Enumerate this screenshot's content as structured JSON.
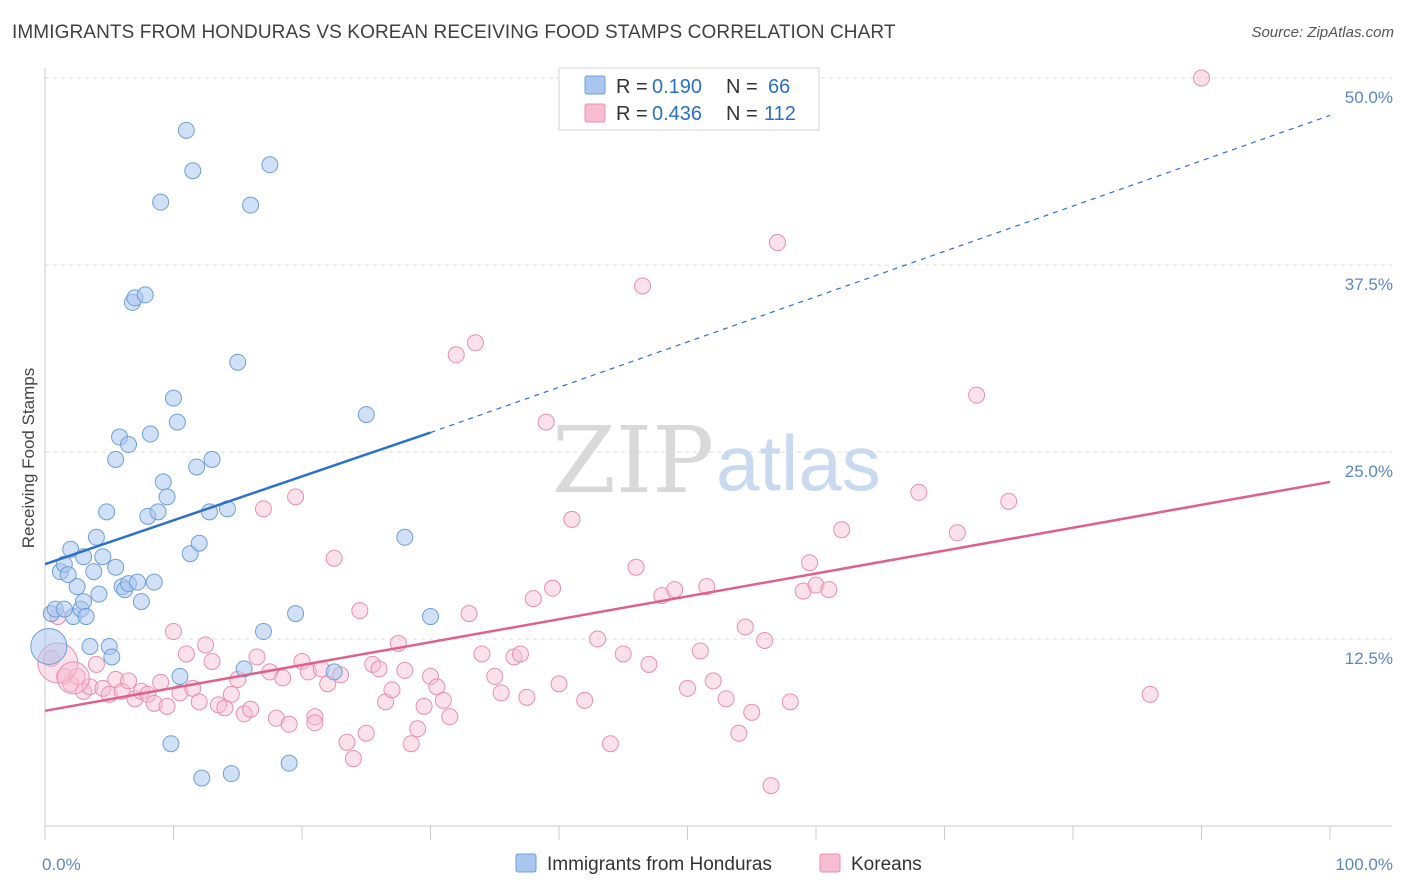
{
  "title": "IMMIGRANTS FROM HONDURAS VS KOREAN RECEIVING FOOD STAMPS CORRELATION CHART",
  "source": "Source: ZipAtlas.com",
  "watermark": {
    "zip": "ZIP",
    "atlas": "atlas"
  },
  "colors": {
    "blue_fill": "#a9c7ee",
    "blue_stroke": "#6f9fd8",
    "blue_line": "#2d6fcc",
    "pink_fill": "#f6bcd0",
    "pink_stroke": "#e88fad",
    "pink_line": "#e0608c",
    "tick": "#5b86c5",
    "grid": "#dddddd"
  },
  "legend": {
    "rows": [
      {
        "r_label": "R =",
        "r_value": "0.190",
        "n_label": "N =",
        "n_value": "66"
      },
      {
        "r_label": "R =",
        "r_value": "0.436",
        "n_label": "N =",
        "n_value": "112"
      }
    ]
  },
  "chart_data": {
    "type": "scatter",
    "title": "IMMIGRANTS FROM HONDURAS VS KOREAN RECEIVING FOOD STAMPS CORRELATION CHART",
    "xlabel": "",
    "ylabel": "Receiving Food Stamps",
    "xlim": [
      0,
      100
    ],
    "ylim": [
      0,
      50
    ],
    "x_tick_labels": [
      "0.0%",
      "100.0%"
    ],
    "y_ticks": [
      12.5,
      25.0,
      37.5,
      50.0
    ],
    "y_tick_labels": [
      "12.5%",
      "25.0%",
      "37.5%",
      "50.0%"
    ],
    "grid": true,
    "legend_placement": "bottom",
    "series": [
      {
        "name": "Immigrants from Honduras",
        "color": "#a9c7ee",
        "trend": {
          "x0": 0,
          "y0": 17.5,
          "x1": 30,
          "y1": 26.3,
          "extend_to_x": 100,
          "extend_to_y": 47.5
        },
        "points": [
          [
            0.5,
            14.2
          ],
          [
            0.8,
            14.5
          ],
          [
            1.2,
            17.0
          ],
          [
            1.5,
            17.5
          ],
          [
            1.8,
            16.8
          ],
          [
            2.0,
            18.5
          ],
          [
            2.2,
            14.0
          ],
          [
            2.5,
            16.0
          ],
          [
            2.8,
            14.5
          ],
          [
            3.0,
            15.0
          ],
          [
            3.2,
            14.0
          ],
          [
            3.5,
            12.0
          ],
          [
            3.8,
            17.0
          ],
          [
            4.0,
            19.3
          ],
          [
            4.2,
            15.5
          ],
          [
            4.5,
            18.0
          ],
          [
            4.8,
            21.0
          ],
          [
            5.0,
            12.0
          ],
          [
            5.2,
            11.3
          ],
          [
            5.5,
            24.5
          ],
          [
            5.5,
            17.3
          ],
          [
            5.8,
            26.0
          ],
          [
            6.0,
            16.0
          ],
          [
            6.2,
            15.8
          ],
          [
            6.5,
            25.5
          ],
          [
            6.5,
            16.2
          ],
          [
            6.8,
            35.0
          ],
          [
            7.0,
            35.3
          ],
          [
            7.2,
            16.3
          ],
          [
            7.5,
            15.0
          ],
          [
            7.8,
            35.5
          ],
          [
            8.0,
            20.7
          ],
          [
            8.2,
            26.2
          ],
          [
            8.5,
            16.3
          ],
          [
            8.8,
            21.0
          ],
          [
            9.0,
            41.7
          ],
          [
            9.2,
            23.0
          ],
          [
            9.5,
            22.0
          ],
          [
            9.8,
            5.5
          ],
          [
            10.0,
            28.6
          ],
          [
            10.3,
            27.0
          ],
          [
            10.5,
            10.0
          ],
          [
            11.0,
            46.5
          ],
          [
            11.3,
            18.2
          ],
          [
            11.5,
            43.8
          ],
          [
            11.8,
            24.0
          ],
          [
            12.0,
            18.9
          ],
          [
            12.2,
            3.2
          ],
          [
            12.8,
            21.0
          ],
          [
            13.0,
            24.5
          ],
          [
            14.2,
            21.2
          ],
          [
            14.5,
            3.5
          ],
          [
            15.0,
            31.0
          ],
          [
            15.5,
            10.5
          ],
          [
            16.0,
            41.5
          ],
          [
            17.0,
            13.0
          ],
          [
            17.5,
            44.2
          ],
          [
            19.0,
            4.2
          ],
          [
            19.5,
            14.2
          ],
          [
            22.5,
            10.3
          ],
          [
            25.0,
            27.5
          ],
          [
            28.0,
            19.3
          ],
          [
            30.0,
            14.0
          ],
          [
            1.5,
            14.5
          ],
          [
            3.0,
            18.0
          ],
          [
            0.3,
            12.0
          ]
        ]
      },
      {
        "name": "Koreans",
        "color": "#f6bcd0",
        "trend": {
          "x0": 0,
          "y0": 7.7,
          "x1": 100,
          "y1": 23.0
        },
        "points": [
          [
            0.5,
            11.2
          ],
          [
            1.0,
            14.0
          ],
          [
            1.5,
            10.0
          ],
          [
            2.0,
            9.5
          ],
          [
            2.5,
            10.0
          ],
          [
            3.0,
            9.0
          ],
          [
            3.5,
            9.3
          ],
          [
            4.0,
            10.8
          ],
          [
            4.5,
            9.2
          ],
          [
            5.0,
            8.8
          ],
          [
            5.5,
            9.8
          ],
          [
            6.0,
            9.0
          ],
          [
            6.5,
            9.7
          ],
          [
            7.0,
            8.5
          ],
          [
            7.5,
            9.0
          ],
          [
            8.0,
            8.8
          ],
          [
            8.5,
            8.2
          ],
          [
            9.0,
            9.6
          ],
          [
            9.5,
            8.0
          ],
          [
            10.0,
            13.0
          ],
          [
            10.5,
            8.9
          ],
          [
            11.0,
            11.5
          ],
          [
            11.5,
            9.2
          ],
          [
            12.0,
            8.3
          ],
          [
            12.5,
            12.1
          ],
          [
            13.0,
            11.0
          ],
          [
            13.5,
            8.1
          ],
          [
            14.0,
            7.9
          ],
          [
            14.5,
            8.8
          ],
          [
            15.0,
            9.8
          ],
          [
            15.5,
            7.5
          ],
          [
            16.0,
            7.8
          ],
          [
            16.5,
            11.3
          ],
          [
            17.0,
            21.2
          ],
          [
            17.5,
            10.3
          ],
          [
            18.0,
            7.2
          ],
          [
            18.5,
            9.9
          ],
          [
            19.0,
            6.8
          ],
          [
            19.5,
            22.0
          ],
          [
            20.0,
            11.0
          ],
          [
            20.5,
            10.3
          ],
          [
            21.0,
            7.3
          ],
          [
            21.5,
            10.5
          ],
          [
            22.0,
            9.5
          ],
          [
            22.5,
            17.9
          ],
          [
            23.0,
            10.1
          ],
          [
            23.5,
            5.6
          ],
          [
            24.0,
            4.5
          ],
          [
            24.5,
            14.4
          ],
          [
            25.0,
            6.2
          ],
          [
            25.5,
            10.8
          ],
          [
            26.0,
            10.5
          ],
          [
            26.5,
            8.3
          ],
          [
            27.0,
            9.1
          ],
          [
            27.5,
            12.2
          ],
          [
            28.0,
            10.4
          ],
          [
            28.5,
            5.5
          ],
          [
            29.0,
            6.5
          ],
          [
            29.5,
            8.0
          ],
          [
            30.0,
            10.0
          ],
          [
            30.5,
            9.3
          ],
          [
            31.0,
            8.4
          ],
          [
            31.5,
            7.3
          ],
          [
            32.0,
            31.5
          ],
          [
            33.0,
            14.2
          ],
          [
            33.5,
            32.3
          ],
          [
            34.0,
            11.5
          ],
          [
            35.0,
            10.0
          ],
          [
            35.5,
            8.9
          ],
          [
            36.5,
            11.3
          ],
          [
            37.0,
            11.5
          ],
          [
            37.5,
            8.6
          ],
          [
            38.0,
            15.2
          ],
          [
            39.0,
            27.0
          ],
          [
            39.5,
            15.9
          ],
          [
            40.0,
            9.5
          ],
          [
            41.0,
            20.5
          ],
          [
            42.0,
            8.4
          ],
          [
            43.0,
            12.5
          ],
          [
            44.0,
            5.5
          ],
          [
            45.0,
            11.5
          ],
          [
            46.0,
            17.3
          ],
          [
            46.5,
            36.1
          ],
          [
            47.0,
            10.8
          ],
          [
            48.0,
            15.4
          ],
          [
            49.0,
            15.8
          ],
          [
            50.0,
            9.2
          ],
          [
            51.0,
            11.7
          ],
          [
            51.5,
            16.0
          ],
          [
            52.0,
            9.7
          ],
          [
            53.0,
            8.5
          ],
          [
            54.0,
            6.2
          ],
          [
            54.5,
            13.3
          ],
          [
            55.0,
            7.6
          ],
          [
            56.0,
            12.4
          ],
          [
            56.5,
            2.7
          ],
          [
            57.0,
            39.0
          ],
          [
            58.0,
            8.3
          ],
          [
            59.0,
            15.7
          ],
          [
            59.5,
            17.6
          ],
          [
            60.0,
            16.1
          ],
          [
            61.0,
            15.8
          ],
          [
            62.0,
            19.8
          ],
          [
            68.0,
            22.3
          ],
          [
            71.0,
            19.6
          ],
          [
            72.5,
            28.8
          ],
          [
            75.0,
            21.7
          ],
          [
            86.0,
            8.8
          ],
          [
            90.0,
            50.0
          ],
          [
            21.0,
            6.9
          ],
          [
            1.0,
            10.9
          ],
          [
            2.2,
            9.9
          ]
        ]
      }
    ]
  },
  "bottom_legend": {
    "items": [
      {
        "label": "Immigrants from Honduras"
      },
      {
        "label": "Koreans"
      }
    ]
  }
}
